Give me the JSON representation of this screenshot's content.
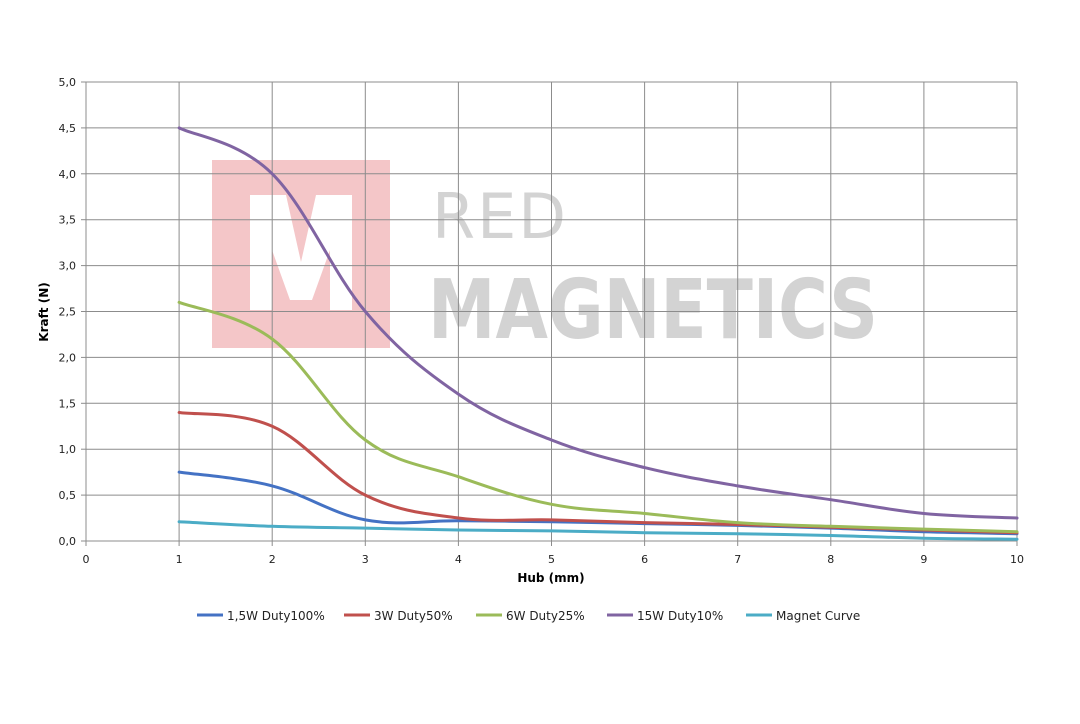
{
  "chart_data": {
    "type": "line",
    "title": "",
    "xlabel": "Hub (mm)",
    "ylabel": "Kraft (N)",
    "xlim": [
      0,
      10
    ],
    "ylim": [
      0,
      5
    ],
    "x_ticks": [
      "0",
      "1",
      "2",
      "3",
      "4",
      "5",
      "6",
      "7",
      "8",
      "9",
      "10"
    ],
    "y_ticks": [
      "0,0",
      "0,5",
      "1,0",
      "1,5",
      "2,0",
      "2,5",
      "3,0",
      "3,5",
      "4,0",
      "4,5",
      "5,0"
    ],
    "grid": true,
    "legend_position": "bottom",
    "x": [
      1,
      2,
      3,
      4,
      5,
      6,
      7,
      8,
      9,
      10
    ],
    "series": [
      {
        "name": "1,5W Duty100%",
        "color": "#4472c4",
        "values": [
          0.75,
          0.6,
          0.23,
          0.22,
          0.21,
          0.19,
          0.17,
          0.14,
          0.1,
          0.08
        ]
      },
      {
        "name": "3W Duty50%",
        "color": "#c0504d",
        "values": [
          1.4,
          1.25,
          0.5,
          0.25,
          0.23,
          0.2,
          0.18,
          0.15,
          0.12,
          0.09
        ]
      },
      {
        "name": "6W Duty25%",
        "color": "#9bbb59",
        "values": [
          2.6,
          2.2,
          1.1,
          0.7,
          0.4,
          0.3,
          0.2,
          0.16,
          0.13,
          0.1
        ]
      },
      {
        "name": "15W Duty10%",
        "color": "#8064a2",
        "values": [
          4.5,
          4.0,
          2.5,
          1.6,
          1.1,
          0.8,
          0.6,
          0.45,
          0.3,
          0.25
        ]
      },
      {
        "name": "Magnet Curve",
        "color": "#4bacc6",
        "values": [
          0.21,
          0.16,
          0.14,
          0.12,
          0.11,
          0.09,
          0.08,
          0.06,
          0.03,
          0.02
        ]
      }
    ]
  },
  "watermark": {
    "line1": "RED",
    "line2": "MAGNETICS",
    "logo_color": "#f4c6c8",
    "text_color": "#d3d3d3"
  }
}
